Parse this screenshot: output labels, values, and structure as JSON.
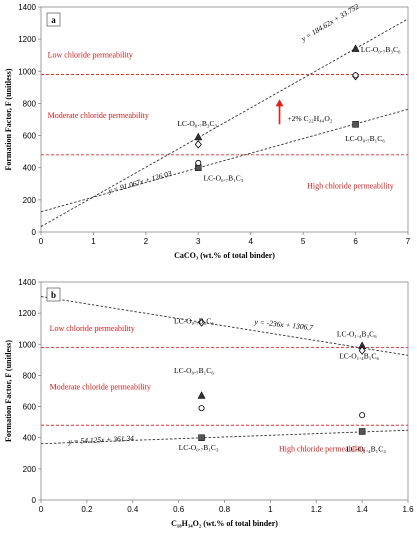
{
  "chart_data": [
    {
      "type": "scatter",
      "panel_label": "a",
      "xlabel": "CaCO₃ (wt.% of total binder)",
      "ylabel": "Formation Factor, F (unitless)",
      "xlim": [
        0,
        7
      ],
      "ylim": [
        0,
        1400
      ],
      "xticks": [
        "0",
        "1",
        "2",
        "3",
        "4",
        "5",
        "6",
        "7"
      ],
      "yticks": [
        "0",
        "200",
        "400",
        "600",
        "800",
        "1000",
        "1200",
        "1400"
      ],
      "thresholds": [
        480,
        980
      ],
      "regions": [
        {
          "label": "Low chloride permeability",
          "x": 0.05,
          "y": 1085
        },
        {
          "label": "Moderate chloride permeability",
          "x": 0.05,
          "y": 710
        },
        {
          "label": "High chloride permeability",
          "x": 5.0,
          "y": 270
        }
      ],
      "series": [
        {
          "marker": "triangle",
          "points": [
            {
              "x": 3,
              "y": 590
            },
            {
              "x": 6,
              "y": 1140
            }
          ]
        },
        {
          "marker": "diamond",
          "points": [
            {
              "x": 3,
              "y": 545
            },
            {
              "x": 6,
              "y": 970
            }
          ]
        },
        {
          "marker": "square",
          "points": [
            {
              "x": 3,
              "y": 400
            },
            {
              "x": 6,
              "y": 670
            }
          ]
        },
        {
          "marker": "circle",
          "points": [
            {
              "x": 3,
              "y": 430
            },
            {
              "x": 6,
              "y": 975
            }
          ]
        }
      ],
      "trendlines": [
        {
          "slope": 184.62,
          "intercept": 33.752,
          "label": "y = 184.62x + 33.752",
          "lx": 5.0,
          "ly": 1185,
          "angle": -31
        },
        {
          "slope": 91.067,
          "intercept": 126.03,
          "label": "y = 91.067x + 126.03",
          "lx": 1.3,
          "ly": 240,
          "angle": -16
        }
      ],
      "point_labels": [
        {
          "text": "LC-O₀.₇B₃C₃",
          "x": 2.6,
          "y": 660
        },
        {
          "text": "LC-O₀.₇B₁C₃",
          "x": 3.1,
          "y": 320
        },
        {
          "text": "LC-O₀.₇B₃C₆",
          "x": 6.1,
          "y": 1120
        },
        {
          "text": "LC-O₀.₇B₁C₆",
          "x": 5.8,
          "y": 565
        }
      ],
      "arrow": {
        "x": 4.55,
        "y_from": 670,
        "y_to": 825,
        "label": "+2% C₂₂H₄₄O₂",
        "lx": 4.7,
        "ly": 690
      }
    },
    {
      "type": "scatter",
      "panel_label": "b",
      "xlabel": "C₁₈H₃₄O₂ (wt.% of total binder)",
      "ylabel": "Formation Factor, F (unitless)",
      "xlim": [
        0,
        1.6
      ],
      "ylim": [
        0,
        1400
      ],
      "xticks": [
        "0",
        "0.2",
        "0.4",
        "0.6",
        "0.8",
        "1",
        "1.2",
        "1.4",
        "1.6"
      ],
      "yticks": [
        "0",
        "200",
        "400",
        "600",
        "800",
        "1000",
        "1200",
        "1400"
      ],
      "thresholds": [
        480,
        980
      ],
      "regions": [
        {
          "label": "Low chloride permeability",
          "x": 0.02,
          "y": 1085
        },
        {
          "label": "Moderate chloride permeability",
          "x": 0.02,
          "y": 710
        },
        {
          "label": "High chloride permeability",
          "x": 1.02,
          "y": 310
        }
      ],
      "series": [
        {
          "marker": "triangle",
          "points": [
            {
              "x": 0.7,
              "y": 670
            },
            {
              "x": 1.4,
              "y": 990
            }
          ]
        },
        {
          "marker": "diamond",
          "points": [
            {
              "x": 0.7,
              "y": 1140
            },
            {
              "x": 1.4,
              "y": 960
            }
          ]
        },
        {
          "marker": "square",
          "points": [
            {
              "x": 0.7,
              "y": 400
            },
            {
              "x": 1.4,
              "y": 440
            }
          ]
        },
        {
          "marker": "circle",
          "points": [
            {
              "x": 0.7,
              "y": 590
            },
            {
              "x": 1.4,
              "y": 545
            }
          ]
        }
      ],
      "trendlines": [
        {
          "slope": -236,
          "intercept": 1306.7,
          "label": "y = -236x + 1306.7",
          "lx": 0.93,
          "ly": 1130,
          "angle": 6
        },
        {
          "slope": 54.125,
          "intercept": 361.34,
          "label": "y = 54.125x + 361.34",
          "lx": 0.12,
          "ly": 360,
          "angle": -3
        }
      ],
      "point_labels": [
        {
          "text": "LC-O₀.₇B₃C₆",
          "x": 0.58,
          "y": 1135
        },
        {
          "text": "LC-O₀.₇B₁C₆",
          "x": 0.58,
          "y": 815
        },
        {
          "text": "LC-O₀.₇B₁C₃",
          "x": 0.6,
          "y": 320
        },
        {
          "text": "LC-O₁.₄B₃C₆",
          "x": 1.29,
          "y": 1050
        },
        {
          "text": "LC-O₁.₄B₁C₆",
          "x": 1.3,
          "y": 910
        },
        {
          "text": "LC-O₁.₄B₁C₃",
          "x": 1.33,
          "y": 310
        }
      ]
    }
  ]
}
